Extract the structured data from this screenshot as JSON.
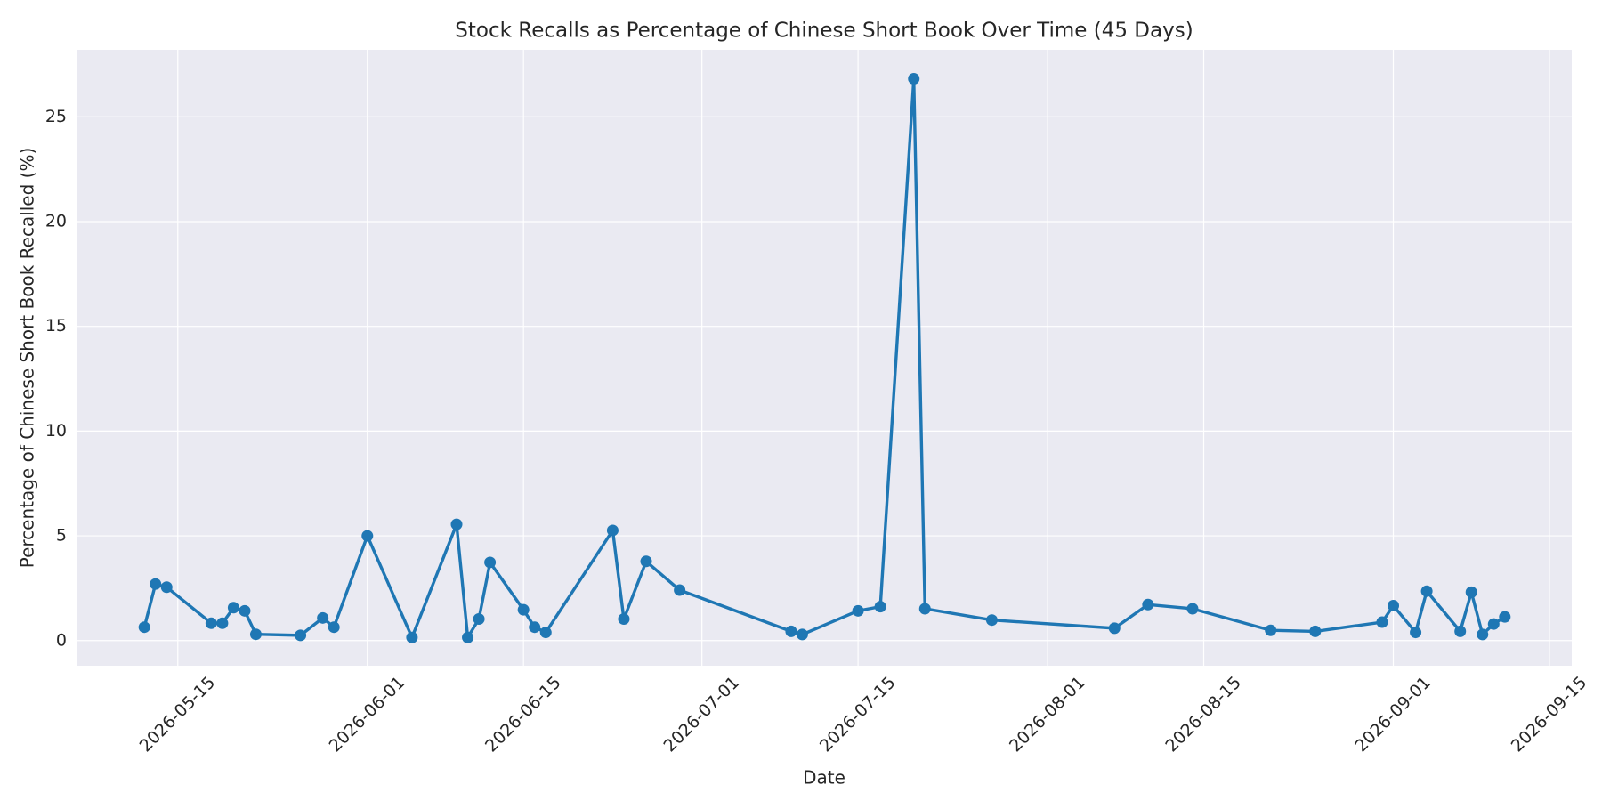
{
  "chart_data": {
    "type": "line",
    "title": "Stock Recalls as Percentage of Chinese Short Book Over Time (45 Days)",
    "x_label": "Date",
    "y_label": "Percentage of Chinese Short Book Recalled (%)",
    "color": "#1f77b4",
    "grid": true,
    "x": [
      "2026-05-12",
      "2026-05-13",
      "2026-05-14",
      "2026-05-18",
      "2026-05-19",
      "2026-05-20",
      "2026-05-21",
      "2026-05-22",
      "2026-05-26",
      "2026-05-28",
      "2026-05-29",
      "2026-06-01",
      "2026-06-05",
      "2026-06-09",
      "2026-06-10",
      "2026-06-11",
      "2026-06-12",
      "2026-06-15",
      "2026-06-16",
      "2026-06-17",
      "2026-06-23",
      "2026-06-24",
      "2026-06-26",
      "2026-06-29",
      "2026-07-09",
      "2026-07-10",
      "2026-07-15",
      "2026-07-17",
      "2026-07-20",
      "2026-07-21",
      "2026-07-27",
      "2026-08-07",
      "2026-08-10",
      "2026-08-14",
      "2026-08-21",
      "2026-08-25",
      "2026-08-31",
      "2026-09-01",
      "2026-09-03",
      "2026-09-04",
      "2026-09-07",
      "2026-09-08",
      "2026-09-09",
      "2026-09-10",
      "2026-09-11"
    ],
    "values": [
      0.64,
      2.7,
      2.55,
      0.83,
      0.83,
      1.57,
      1.42,
      0.3,
      0.25,
      1.08,
      0.64,
      5.0,
      0.15,
      5.55,
      0.15,
      1.03,
      3.73,
      1.47,
      0.64,
      0.39,
      5.26,
      1.03,
      3.78,
      2.41,
      0.44,
      0.29,
      1.42,
      1.62,
      26.82,
      1.52,
      0.98,
      0.59,
      1.72,
      1.52,
      0.49,
      0.44,
      0.88,
      1.67,
      0.39,
      2.36,
      0.44,
      2.31,
      0.29,
      0.79,
      1.13
    ],
    "xlim": [
      "2026-05-06",
      "2026-09-17"
    ],
    "xticks": [
      "2026-05-15",
      "2026-06-01",
      "2026-06-15",
      "2026-07-01",
      "2026-07-15",
      "2026-08-01",
      "2026-08-15",
      "2026-09-01",
      "2026-09-15"
    ],
    "ylim": [
      -1.2,
      28.2
    ],
    "yticks": [
      0,
      5,
      10,
      15,
      20,
      25
    ]
  }
}
